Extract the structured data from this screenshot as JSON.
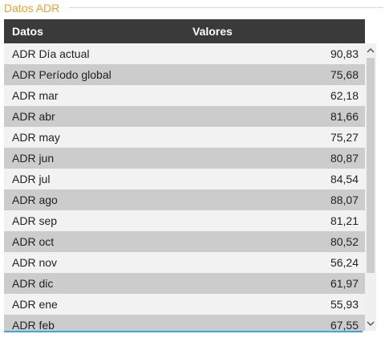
{
  "panel": {
    "title": "Datos ADR"
  },
  "table": {
    "headers": {
      "label": "Datos",
      "value": "Valores"
    },
    "rows": [
      {
        "label": "ADR Día actual",
        "value": "90,83"
      },
      {
        "label": "ADR Período global",
        "value": "75,68"
      },
      {
        "label": "ADR mar",
        "value": "62,18"
      },
      {
        "label": "ADR abr",
        "value": "81,66"
      },
      {
        "label": "ADR may",
        "value": "75,27"
      },
      {
        "label": "ADR jun",
        "value": "80,87"
      },
      {
        "label": "ADR jul",
        "value": "84,54"
      },
      {
        "label": "ADR ago",
        "value": "88,07"
      },
      {
        "label": "ADR sep",
        "value": "81,21"
      },
      {
        "label": "ADR oct",
        "value": "80,52"
      },
      {
        "label": "ADR nov",
        "value": "56,24"
      },
      {
        "label": "ADR dic",
        "value": "61,97"
      },
      {
        "label": "ADR ene",
        "value": "55,93"
      },
      {
        "label": "ADR feb",
        "value": "67,55"
      }
    ]
  },
  "colors": {
    "title": "#f0a030",
    "header_bg": "#3a3a3a",
    "row_light": "#f2f2f2",
    "row_dark": "#cccccc",
    "accent_line": "#3aa7e0"
  },
  "icons": {
    "scroll_up": "chevron-up-icon",
    "scroll_down": "chevron-down-icon"
  }
}
